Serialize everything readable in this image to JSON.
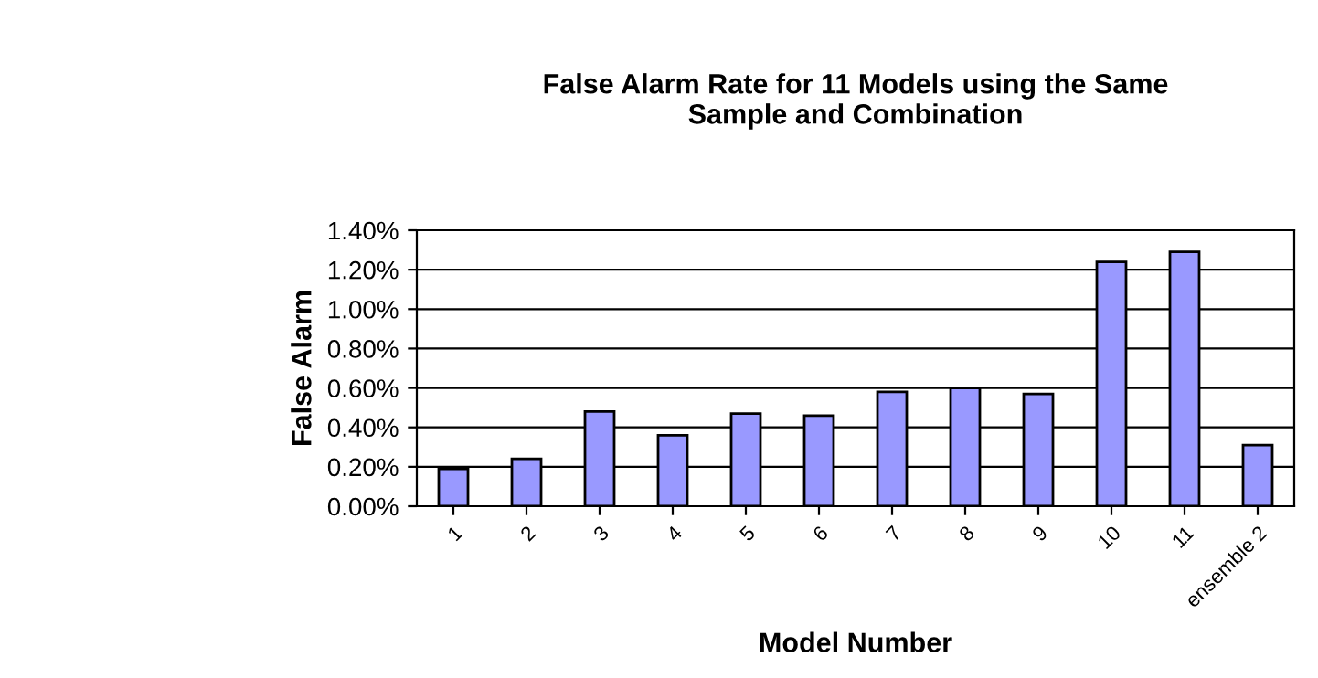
{
  "chart_data": {
    "type": "bar",
    "title": "False Alarm Rate for 11 Models using the Same\nSample and Combination",
    "xlabel": "Model Number",
    "ylabel": "False Alarm",
    "categories": [
      "1",
      "2",
      "3",
      "4",
      "5",
      "6",
      "7",
      "8",
      "9",
      "10",
      "11",
      "ensemble 2"
    ],
    "values": [
      0.19,
      0.24,
      0.48,
      0.36,
      0.47,
      0.46,
      0.58,
      0.6,
      0.57,
      1.24,
      1.29,
      0.31
    ],
    "color": "#9999ff",
    "ylim": [
      0,
      1.4
    ],
    "yticks": [
      {
        "value": 0,
        "label": "0.00%"
      },
      {
        "value": 0.2,
        "label": "0.20%"
      },
      {
        "value": 0.4,
        "label": "0.40%"
      },
      {
        "value": 0.6,
        "label": "0.60%"
      },
      {
        "value": 0.8,
        "label": "0.80%"
      },
      {
        "value": 1.0,
        "label": "1.00%"
      },
      {
        "value": 1.2,
        "label": "1.20%"
      },
      {
        "value": 1.4,
        "label": "1.40%"
      }
    ],
    "grid": "y",
    "legend": false
  }
}
